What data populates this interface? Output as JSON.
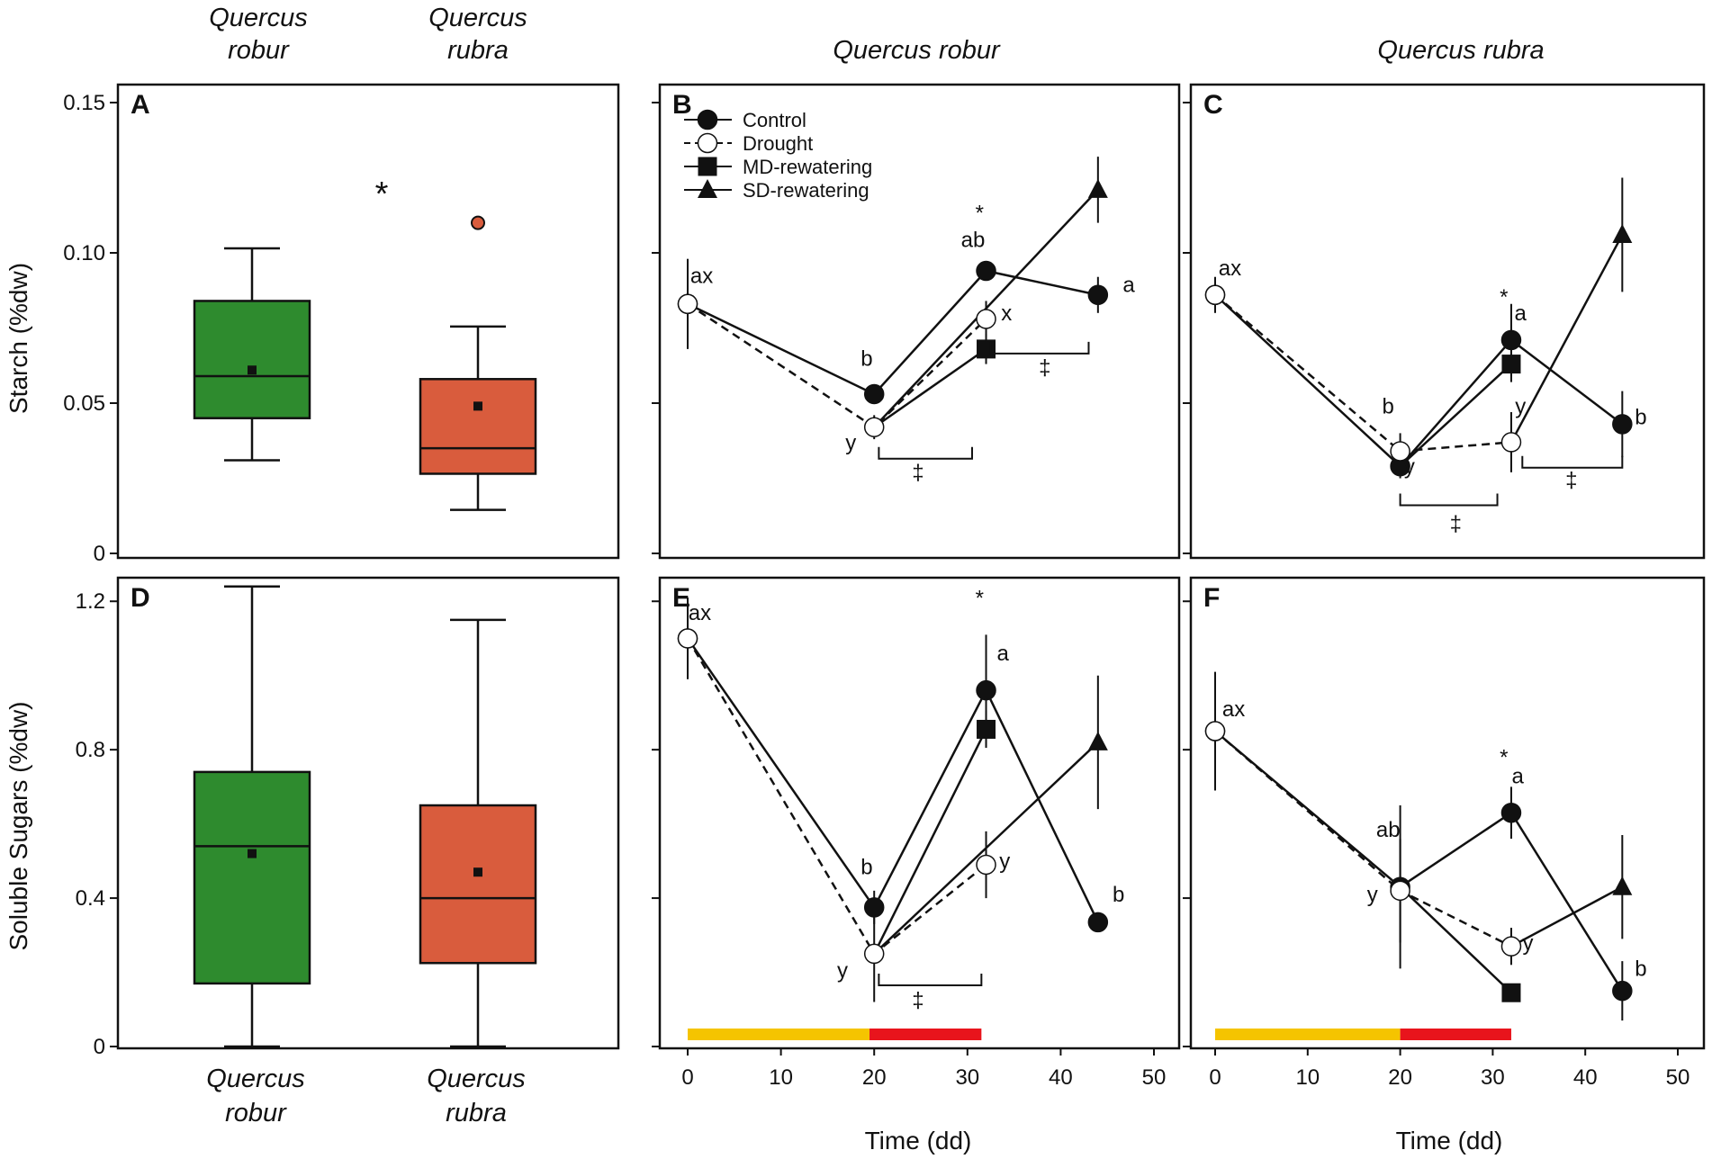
{
  "species_top": [
    "Quercus robur",
    "Quercus rubra"
  ],
  "species_top_split": [
    [
      "Quercus",
      "robur"
    ],
    [
      "Quercus",
      "rubra"
    ]
  ],
  "species_bottom_split": [
    [
      "Quercus",
      "robur"
    ],
    [
      "Quercus",
      "rubra"
    ]
  ],
  "colors": {
    "robur": "#2e8b2e",
    "rubra": "#d95c3d",
    "yellow": "#f5c400",
    "red": "#e8141c"
  },
  "chart_data": [
    {
      "panel": "A",
      "type": "box",
      "ylabel": "Starch (%dw)",
      "yticks": [
        0,
        0.05,
        0.1,
        0.15
      ],
      "ytick_labels": [
        "0",
        "0.05",
        "0.10",
        "0.15"
      ],
      "ylim": [
        0,
        0.15
      ],
      "significance": "*",
      "boxes": [
        {
          "name": "Quercus robur",
          "whisker_low": 0.031,
          "q1": 0.045,
          "median": 0.059,
          "q3": 0.084,
          "whisker_high": 0.1015,
          "mean": 0.061,
          "outliers": []
        },
        {
          "name": "Quercus rubra",
          "whisker_low": 0.0145,
          "q1": 0.0265,
          "median": 0.035,
          "q3": 0.058,
          "whisker_high": 0.0755,
          "mean": 0.049,
          "outliers": [
            0.11
          ]
        }
      ]
    },
    {
      "panel": "B",
      "type": "line",
      "title": "Quercus robur",
      "xlim": [
        0,
        50
      ],
      "ylim": [
        0,
        0.15
      ],
      "legend": [
        "Control",
        "Drought",
        "MD-rewatering",
        "SD-rewatering"
      ],
      "series": [
        {
          "name": "Control",
          "x": [
            0,
            20,
            32,
            44
          ],
          "y": [
            0.083,
            0.053,
            0.094,
            0.086
          ],
          "err": [
            0.015,
            0.003,
            0.003,
            0.006
          ]
        },
        {
          "name": "Drought",
          "x": [
            0,
            20,
            32
          ],
          "y": [
            0.083,
            0.042,
            0.078
          ],
          "err": [
            0,
            0.004,
            0.006
          ]
        },
        {
          "name": "MD-rewatering",
          "x": [
            20,
            32
          ],
          "y": [
            0.042,
            0.068
          ],
          "err": [
            0,
            0.005
          ]
        },
        {
          "name": "SD-rewatering",
          "x": [
            20,
            44
          ],
          "y": [
            0.042,
            0.121
          ],
          "err": [
            0,
            0.011
          ]
        }
      ],
      "annotations": [
        {
          "text": "ax",
          "x": 1.5,
          "y": 0.09
        },
        {
          "text": "b",
          "x": 19.2,
          "y": 0.0625
        },
        {
          "text": "y",
          "x": 17.5,
          "y": 0.0345
        },
        {
          "text": "*",
          "x": 31.3,
          "y": 0.111
        },
        {
          "text": "ab",
          "x": 30.6,
          "y": 0.102
        },
        {
          "text": "x",
          "x": 34.2,
          "y": 0.0775
        },
        {
          "text": "a",
          "x": 47.3,
          "y": 0.087
        },
        {
          "text": "‡",
          "x": 24.7,
          "y": 0.0245
        },
        {
          "text": "‡",
          "x": 38.3,
          "y": 0.0595
        }
      ],
      "brackets": [
        {
          "x1": 20.5,
          "x2": 30.5,
          "y": 0.0315
        },
        {
          "x1": 32.5,
          "x2": 43.0,
          "y": 0.0665
        }
      ]
    },
    {
      "panel": "C",
      "type": "line",
      "title": "Quercus rubra",
      "xlim": [
        0,
        50
      ],
      "ylim": [
        0,
        0.15
      ],
      "series": [
        {
          "name": "Control",
          "x": [
            0,
            20,
            32,
            44
          ],
          "y": [
            0.086,
            0.029,
            0.071,
            0.043
          ],
          "err": [
            0.006,
            0.004,
            0.012,
            0.011
          ]
        },
        {
          "name": "Drought",
          "x": [
            0,
            20,
            32
          ],
          "y": [
            0.086,
            0.034,
            0.037
          ],
          "err": [
            0,
            0.006,
            0.01
          ]
        },
        {
          "name": "MD-rewatering",
          "x": [
            20,
            32
          ],
          "y": [
            0.029,
            0.063
          ],
          "err": [
            0,
            0.006
          ]
        },
        {
          "name": "SD-rewatering",
          "x": [
            32,
            44
          ],
          "y": [
            0.037,
            0.106
          ],
          "err": [
            0,
            0.019
          ]
        }
      ],
      "annotations": [
        {
          "text": "ax",
          "x": 1.6,
          "y": 0.0925
        },
        {
          "text": "b",
          "x": 18.7,
          "y": 0.0465
        },
        {
          "text": "y",
          "x": 21.0,
          "y": 0.0265
        },
        {
          "text": "*",
          "x": 31.2,
          "y": 0.083
        },
        {
          "text": "a",
          "x": 33.0,
          "y": 0.0775
        },
        {
          "text": "y",
          "x": 33.0,
          "y": 0.0465
        },
        {
          "text": "b",
          "x": 46.0,
          "y": 0.043
        },
        {
          "text": "‡",
          "x": 26.0,
          "y": 0.0075
        },
        {
          "text": "‡",
          "x": 38.5,
          "y": 0.022
        }
      ],
      "brackets": [
        {
          "x1": 20.0,
          "x2": 30.5,
          "y": 0.016
        },
        {
          "x1": 33.2,
          "x2": 44.0,
          "y": 0.0285
        }
      ]
    },
    {
      "panel": "D",
      "type": "box",
      "ylabel": "Soluble Sugars (%dw)",
      "yticks": [
        0,
        0.4,
        0.8,
        1.2
      ],
      "ytick_labels": [
        "0",
        "0.4",
        "0.8",
        "1.2"
      ],
      "ylim": [
        0,
        1.3
      ],
      "boxes": [
        {
          "name": "Quercus robur",
          "whisker_low": 0,
          "q1": 0.17,
          "median": 0.54,
          "q3": 0.74,
          "whisker_high": 1.24,
          "mean": 0.52,
          "outliers": []
        },
        {
          "name": "Quercus rubra",
          "whisker_low": 0,
          "q1": 0.225,
          "median": 0.4,
          "q3": 0.65,
          "whisker_high": 1.15,
          "mean": 0.47,
          "outliers": []
        }
      ]
    },
    {
      "panel": "E",
      "type": "line",
      "xlim": [
        0,
        50
      ],
      "ylim": [
        0,
        1.3
      ],
      "xticks": [
        0,
        10,
        20,
        30,
        40,
        50
      ],
      "xlabel": "Time (dd)",
      "series": [
        {
          "name": "Control",
          "x": [
            0,
            20,
            32,
            44
          ],
          "y": [
            1.1,
            0.375,
            0.96,
            0.335
          ],
          "err": [
            0.11,
            0.045,
            0.15,
            0.01
          ]
        },
        {
          "name": "Drought",
          "x": [
            0,
            20,
            32
          ],
          "y": [
            1.1,
            0.25,
            0.49
          ],
          "err": [
            0,
            0.13,
            0.09
          ]
        },
        {
          "name": "MD-rewatering",
          "x": [
            20,
            32
          ],
          "y": [
            0.25,
            0.855
          ],
          "err": [
            0,
            0.05
          ]
        },
        {
          "name": "SD-rewatering",
          "x": [
            20,
            44
          ],
          "y": [
            0.25,
            0.82
          ],
          "err": [
            0,
            0.18
          ]
        }
      ],
      "annotations": [
        {
          "text": "ax",
          "x": 1.3,
          "y": 1.15
        },
        {
          "text": "b",
          "x": 19.2,
          "y": 0.465
        },
        {
          "text": "y",
          "x": 16.6,
          "y": 0.185
        },
        {
          "text": "*",
          "x": 31.3,
          "y": 1.19
        },
        {
          "text": "a",
          "x": 33.8,
          "y": 1.04
        },
        {
          "text": "y",
          "x": 34.0,
          "y": 0.48
        },
        {
          "text": "b",
          "x": 46.2,
          "y": 0.39
        },
        {
          "text": "‡",
          "x": 24.7,
          "y": 0.105
        }
      ],
      "brackets": [
        {
          "x1": 20.5,
          "x2": 31.5,
          "y": 0.165
        }
      ],
      "phase_bar": [
        {
          "x1": 0,
          "x2": 19.5,
          "color": "yellow"
        },
        {
          "x1": 19.5,
          "x2": 31.5,
          "color": "red"
        }
      ]
    },
    {
      "panel": "F",
      "type": "line",
      "xlim": [
        0,
        50
      ],
      "ylim": [
        0,
        1.3
      ],
      "xticks": [
        0,
        10,
        20,
        30,
        40,
        50
      ],
      "xlabel": "Time (dd)",
      "series": [
        {
          "name": "Control",
          "x": [
            0,
            20,
            32,
            44
          ],
          "y": [
            0.85,
            0.43,
            0.63,
            0.15
          ],
          "err": [
            0.16,
            0.22,
            0.07,
            0.08
          ]
        },
        {
          "name": "Drought",
          "x": [
            0,
            20,
            32
          ],
          "y": [
            0.85,
            0.42,
            0.27
          ],
          "err": [
            0,
            0.14,
            0.05
          ]
        },
        {
          "name": "MD-rewatering",
          "x": [
            20,
            32
          ],
          "y": [
            0.43,
            0.145
          ],
          "err": [
            0,
            0.02
          ]
        },
        {
          "name": "SD-rewatering",
          "x": [
            32,
            44
          ],
          "y": [
            0.27,
            0.43
          ],
          "err": [
            0,
            0.14
          ]
        }
      ],
      "annotations": [
        {
          "text": "ax",
          "x": 2.0,
          "y": 0.89
        },
        {
          "text": "ab",
          "x": 18.7,
          "y": 0.565
        },
        {
          "text": "y",
          "x": 17.0,
          "y": 0.39
        },
        {
          "text": "*",
          "x": 31.2,
          "y": 0.76
        },
        {
          "text": "a",
          "x": 32.7,
          "y": 0.71
        },
        {
          "text": "y",
          "x": 33.8,
          "y": 0.26
        },
        {
          "text": "b",
          "x": 46.0,
          "y": 0.19
        }
      ],
      "phase_bar": [
        {
          "x1": 0,
          "x2": 20,
          "color": "yellow"
        },
        {
          "x1": 20,
          "x2": 32,
          "color": "red"
        }
      ]
    }
  ]
}
